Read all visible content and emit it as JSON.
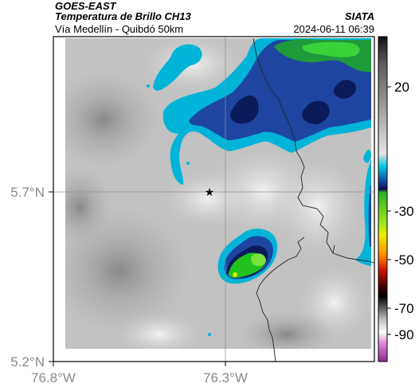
{
  "header": {
    "agency": "GOES-EAST",
    "product": "Temperatura de Brillo CH13",
    "region": "Vía Medellín - Quibdó 50km",
    "brand": "SIATA",
    "timestamp": "2024-06-11 06:39"
  },
  "axes": {
    "x_ticks": [
      {
        "label": "76.8°W",
        "lon": -76.8
      },
      {
        "label": "76.3°W",
        "lon": -76.3
      }
    ],
    "y_ticks": [
      {
        "label": "5.7°N",
        "lat": 5.7
      },
      {
        "label": "5.2°N",
        "lat": 5.2
      }
    ]
  },
  "colorbar": {
    "ticks": [
      {
        "label": "20",
        "value": 20
      },
      {
        "label": "-30",
        "value": -30
      },
      {
        "label": "-50",
        "value": -50
      },
      {
        "label": "-70",
        "value": -70
      },
      {
        "label": "-90",
        "value": -90
      }
    ],
    "colors": {
      "warm": "#9e9e9e",
      "cyan": "#00b4d8",
      "blue": "#1e46a0",
      "navy": "#0a1a5a",
      "green": "#22c21c",
      "yellow": "#f4f400",
      "red": "#e02000",
      "black": "#000000",
      "magenta": "#c060c0"
    }
  },
  "marker": {
    "symbol": "★",
    "name": "location-star"
  }
}
